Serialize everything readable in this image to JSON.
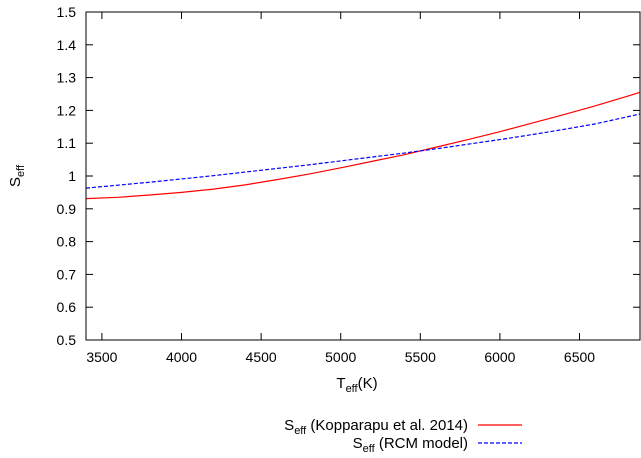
{
  "chart_data": {
    "type": "line",
    "xlabel_main": "T",
    "xlabel_sub": "eff",
    "xlabel_rest": "(K)",
    "ylabel_main": "S",
    "ylabel_sub": "eff",
    "xlim": [
      3400,
      6880
    ],
    "ylim": [
      0.5,
      1.5
    ],
    "xticks": [
      3500,
      4000,
      4500,
      5000,
      5500,
      6000,
      6500
    ],
    "yticks": [
      0.5,
      0.6,
      0.7,
      0.8,
      0.9,
      1,
      1.1,
      1.2,
      1.3,
      1.4,
      1.5
    ],
    "grid": false,
    "legend_position": "bottom-right, below plot",
    "series": [
      {
        "name_main": "S",
        "name_sub": "eff",
        "name_rest": " (Kopparapu et al. 2014)",
        "color": "#ff0000",
        "dash": "solid",
        "x": [
          3400,
          3600,
          3800,
          4000,
          4200,
          4400,
          4600,
          4800,
          5000,
          5200,
          5400,
          5600,
          5800,
          6000,
          6200,
          6400,
          6600,
          6880
        ],
        "y": [
          0.931,
          0.935,
          0.942,
          0.95,
          0.96,
          0.973,
          0.989,
          1.006,
          1.025,
          1.045,
          1.065,
          1.088,
          1.111,
          1.135,
          1.161,
          1.187,
          1.214,
          1.255
        ]
      },
      {
        "name_main": "S",
        "name_sub": "eff",
        "name_rest": " (RCM model)",
        "color": "#0000ff",
        "dash": "dashed",
        "x": [
          3400,
          3600,
          3800,
          4000,
          4200,
          4400,
          4600,
          4800,
          5000,
          5200,
          5400,
          5600,
          5800,
          6000,
          6200,
          6400,
          6600,
          6880
        ],
        "y": [
          0.963,
          0.972,
          0.981,
          0.991,
          1.001,
          1.012,
          1.023,
          1.034,
          1.046,
          1.058,
          1.07,
          1.083,
          1.097,
          1.111,
          1.126,
          1.142,
          1.159,
          1.189
        ]
      }
    ]
  }
}
